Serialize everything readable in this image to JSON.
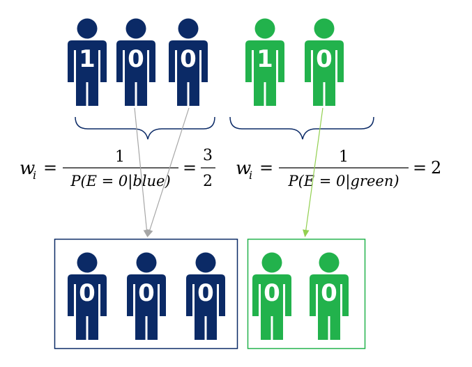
{
  "colors": {
    "blue": "#0b2a66",
    "green": "#22b24c",
    "arrow_gray": "#a6a6a6",
    "arrow_green": "#92d050",
    "brace": "#0b2a66",
    "text": "#000000"
  },
  "top_groups": {
    "blue": {
      "color": "blue",
      "people": [
        {
          "label": "1"
        },
        {
          "label": "0"
        },
        {
          "label": "0"
        }
      ]
    },
    "green": {
      "color": "green",
      "people": [
        {
          "label": "1"
        },
        {
          "label": "0"
        }
      ]
    }
  },
  "bottom_groups": {
    "blue": {
      "color": "blue",
      "people": [
        {
          "label": "0"
        },
        {
          "label": "0"
        },
        {
          "label": "0"
        }
      ]
    },
    "green": {
      "color": "green",
      "people": [
        {
          "label": "0"
        },
        {
          "label": "0"
        }
      ]
    }
  },
  "formulas": {
    "blue": {
      "lhs_base": "w",
      "lhs_sub": "i",
      "equals": "=",
      "numerator": "1",
      "denominator": "P(E = 0|blue)",
      "equals2": "=",
      "result_num": "3",
      "result_den": "2"
    },
    "green": {
      "lhs_base": "w",
      "lhs_sub": "i",
      "equals": "=",
      "numerator": "1",
      "denominator": "P(E = 0|green)",
      "equals2": "=",
      "result": "2"
    }
  }
}
